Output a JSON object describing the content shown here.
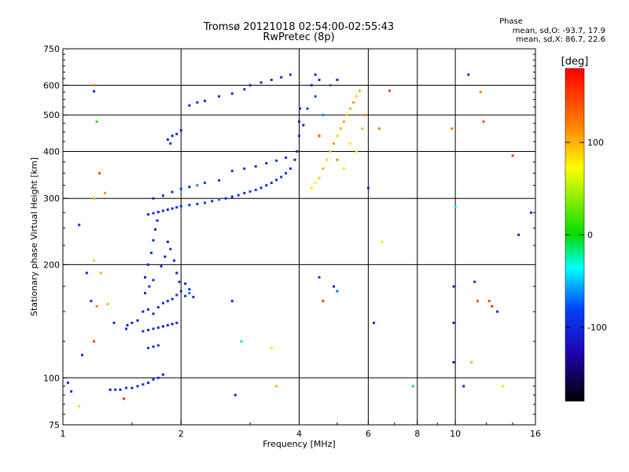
{
  "header": {
    "title_line1": "Tromsø 20121018 02:54:00-02:55:43",
    "title_line2": "RwPretec (8p)"
  },
  "phase_info": {
    "heading": "Phase",
    "line1": "mean, sd,O: -93.7, 17.9",
    "line2": "mean, sd,X:  86.7, 22.6"
  },
  "colorbar": {
    "label": "[deg]",
    "ticks": [
      {
        "value": 100,
        "text": "100"
      },
      {
        "value": 0,
        "text": "0"
      },
      {
        "value": -100,
        "text": "-100"
      }
    ],
    "range": [
      -180,
      180
    ]
  },
  "chart_data": {
    "type": "scatter",
    "title": "Tromsø 20121018 02:54:00-02:55:43",
    "subtitle": "RwPretec (8p)",
    "xlabel": "Frequency [MHz]",
    "ylabel": "Stationary phase Virtual Height [km]",
    "x_scale": "log",
    "y_scale": "log",
    "xlim": [
      1,
      16
    ],
    "ylim": [
      75,
      750
    ],
    "xticks": [
      {
        "value": 1,
        "label": "1"
      },
      {
        "value": 2,
        "label": "2"
      },
      {
        "value": 4,
        "label": "4"
      },
      {
        "value": 6,
        "label": "6"
      },
      {
        "value": 8,
        "label": "8"
      },
      {
        "value": 10,
        "label": "10"
      },
      {
        "value": 16,
        "label": "16"
      }
    ],
    "yticks": [
      {
        "value": 75,
        "label": "75"
      },
      {
        "value": 100,
        "label": "100"
      },
      {
        "value": 200,
        "label": "200"
      },
      {
        "value": 300,
        "label": "300"
      },
      {
        "value": 400,
        "label": "400"
      },
      {
        "value": 500,
        "label": "500"
      },
      {
        "value": 600,
        "label": "600"
      },
      {
        "value": 750,
        "label": "750"
      }
    ],
    "grid": true,
    "x_gridlines": [
      2,
      4,
      6,
      8,
      10
    ],
    "y_gridlines": [
      100,
      200,
      300,
      400,
      500,
      600
    ],
    "color_axis": "phase [deg], -180 to 180",
    "series": [
      {
        "points": [
          [
            1.32,
            93,
            -110
          ],
          [
            1.36,
            93,
            -100
          ],
          [
            1.4,
            93,
            -105
          ],
          [
            1.45,
            94,
            -95
          ],
          [
            1.5,
            94,
            -110
          ],
          [
            1.55,
            95,
            -100
          ],
          [
            1.6,
            96,
            -90
          ],
          [
            1.65,
            97,
            -105
          ],
          [
            1.7,
            99,
            -100
          ],
          [
            1.75,
            100,
            -95
          ],
          [
            1.8,
            102,
            -110
          ],
          [
            1.03,
            97,
            -100
          ],
          [
            1.05,
            92,
            -90
          ],
          [
            1.1,
            84,
            60
          ],
          [
            1.43,
            88,
            160
          ]
        ]
      },
      {
        "points": [
          [
            1.46,
            138,
            -110
          ],
          [
            1.5,
            140,
            -100
          ],
          [
            1.55,
            142,
            -105
          ],
          [
            1.6,
            150,
            -100
          ],
          [
            1.65,
            152,
            -95
          ],
          [
            1.7,
            148,
            -110
          ],
          [
            1.75,
            154,
            -100
          ],
          [
            1.8,
            158,
            -95
          ],
          [
            1.85,
            160,
            -105
          ],
          [
            1.9,
            162,
            -100
          ],
          [
            1.95,
            166,
            -90
          ],
          [
            2.0,
            170,
            -100
          ],
          [
            2.05,
            165,
            -95
          ],
          [
            2.1,
            168,
            -70
          ],
          [
            2.15,
            164,
            -100
          ],
          [
            1.6,
            133,
            -100
          ],
          [
            1.65,
            134,
            -105
          ],
          [
            1.7,
            135,
            -95
          ],
          [
            1.75,
            136,
            -100
          ],
          [
            1.8,
            137,
            -110
          ],
          [
            1.85,
            138,
            -100
          ],
          [
            1.9,
            139,
            -105
          ],
          [
            1.95,
            140,
            -100
          ],
          [
            1.65,
            120,
            -90
          ],
          [
            1.7,
            121,
            -100
          ],
          [
            1.75,
            122,
            -95
          ]
        ]
      },
      {
        "points": [
          [
            1.62,
            185,
            -110
          ],
          [
            1.65,
            200,
            -100
          ],
          [
            1.68,
            215,
            -95
          ],
          [
            1.7,
            232,
            -100
          ],
          [
            1.72,
            248,
            -105
          ],
          [
            1.74,
            262,
            -100
          ],
          [
            1.78,
            198,
            -95
          ],
          [
            1.82,
            210,
            -100
          ],
          [
            1.85,
            230,
            -110
          ],
          [
            1.88,
            220,
            -90
          ],
          [
            1.92,
            205,
            -100
          ],
          [
            1.95,
            190,
            -105
          ],
          [
            1.98,
            180,
            -100
          ],
          [
            2.05,
            178,
            -95
          ],
          [
            2.1,
            172,
            -100
          ],
          [
            1.62,
            168,
            -100
          ],
          [
            1.66,
            175,
            -95
          ],
          [
            1.7,
            182,
            -105
          ]
        ]
      },
      {
        "points": [
          [
            1.65,
            272,
            -100
          ],
          [
            1.7,
            274,
            -95
          ],
          [
            1.75,
            276,
            -105
          ],
          [
            1.8,
            278,
            -100
          ],
          [
            1.85,
            280,
            -110
          ],
          [
            1.9,
            282,
            -100
          ],
          [
            1.95,
            284,
            -90
          ],
          [
            2.0,
            286,
            -100
          ],
          [
            2.1,
            288,
            -95
          ],
          [
            2.2,
            290,
            -100
          ],
          [
            2.3,
            292,
            -80
          ],
          [
            2.4,
            295,
            -100
          ],
          [
            2.5,
            298,
            -70
          ],
          [
            2.6,
            300,
            -90
          ],
          [
            2.7,
            303,
            -100
          ],
          [
            2.8,
            306,
            -95
          ],
          [
            2.9,
            310,
            -100
          ],
          [
            3.0,
            313,
            -80
          ],
          [
            3.1,
            316,
            -100
          ],
          [
            3.2,
            320,
            -90
          ],
          [
            3.3,
            325,
            -100
          ],
          [
            3.4,
            330,
            -95
          ],
          [
            3.5,
            336,
            -100
          ],
          [
            3.6,
            342,
            -90
          ],
          [
            3.7,
            350,
            -100
          ],
          [
            3.8,
            360,
            -95
          ],
          [
            3.9,
            380,
            -100
          ],
          [
            3.95,
            400,
            -100
          ],
          [
            4.0,
            440,
            -95
          ],
          [
            4.0,
            480,
            -100
          ],
          [
            4.02,
            520,
            -110
          ]
        ]
      },
      {
        "points": [
          [
            1.7,
            300,
            -100
          ],
          [
            1.8,
            305,
            -90
          ],
          [
            1.9,
            312,
            -95
          ],
          [
            2.0,
            318,
            -80
          ],
          [
            2.1,
            322,
            -100
          ],
          [
            2.2,
            325,
            -60
          ],
          [
            2.3,
            330,
            -90
          ],
          [
            2.5,
            335,
            -100
          ],
          [
            2.7,
            355,
            -95
          ],
          [
            2.9,
            360,
            -100
          ],
          [
            3.1,
            365,
            -90
          ],
          [
            3.3,
            372,
            -100
          ],
          [
            3.5,
            378,
            -95
          ],
          [
            3.7,
            385,
            -100
          ]
        ]
      },
      {
        "points": [
          [
            1.85,
            430,
            -100
          ],
          [
            1.9,
            440,
            -105
          ],
          [
            1.95,
            445,
            -95
          ],
          [
            2.0,
            455,
            -100
          ],
          [
            1.88,
            420,
            -90
          ],
          [
            2.1,
            530,
            -100
          ],
          [
            2.2,
            540,
            -95
          ],
          [
            2.3,
            545,
            -100
          ],
          [
            2.5,
            560,
            -90
          ],
          [
            2.7,
            570,
            -100
          ],
          [
            2.9,
            585,
            -95
          ],
          [
            3.0,
            600,
            -100
          ],
          [
            3.2,
            610,
            -105
          ],
          [
            3.4,
            620,
            -100
          ],
          [
            3.6,
            630,
            -95
          ],
          [
            3.8,
            640,
            -100
          ]
        ]
      },
      {
        "points": [
          [
            4.3,
            320,
            80
          ],
          [
            4.4,
            330,
            70
          ],
          [
            4.5,
            340,
            90
          ],
          [
            4.6,
            360,
            100
          ],
          [
            4.7,
            380,
            85
          ],
          [
            4.8,
            400,
            95
          ],
          [
            4.9,
            420,
            110
          ],
          [
            5.0,
            440,
            90
          ],
          [
            5.1,
            460,
            100
          ],
          [
            5.2,
            480,
            105
          ],
          [
            5.3,
            500,
            95
          ],
          [
            5.4,
            520,
            100
          ],
          [
            5.5,
            540,
            110
          ],
          [
            5.6,
            560,
            90
          ],
          [
            5.7,
            580,
            100
          ],
          [
            5.0,
            380,
            120
          ],
          [
            5.2,
            360,
            60
          ],
          [
            5.4,
            420,
            80
          ],
          [
            5.6,
            400,
            70
          ],
          [
            5.8,
            460,
            100
          ],
          [
            5.9,
            500,
            120
          ],
          [
            4.5,
            440,
            140
          ],
          [
            4.6,
            500,
            -60
          ],
          [
            4.4,
            560,
            -80
          ],
          [
            4.3,
            600,
            -100
          ],
          [
            4.2,
            520,
            -90
          ],
          [
            4.1,
            470,
            -100
          ],
          [
            4.8,
            600,
            -70
          ],
          [
            5.0,
            620,
            -100
          ],
          [
            4.5,
            620,
            -90
          ],
          [
            4.4,
            640,
            -95
          ]
        ]
      },
      {
        "points": [
          [
            1.2,
            600,
            120
          ],
          [
            1.2,
            578,
            -100
          ],
          [
            1.22,
            480,
            10
          ],
          [
            1.24,
            350,
            150
          ],
          [
            1.28,
            310,
            110
          ],
          [
            1.2,
            300,
            100
          ],
          [
            1.1,
            255,
            -100
          ],
          [
            1.2,
            205,
            90
          ],
          [
            1.25,
            190,
            100
          ],
          [
            1.15,
            190,
            -100
          ],
          [
            1.18,
            160,
            -100
          ],
          [
            1.3,
            157,
            100
          ],
          [
            1.22,
            155,
            120
          ],
          [
            1.2,
            125,
            150
          ],
          [
            1.12,
            115,
            -100
          ],
          [
            1.35,
            140,
            -100
          ],
          [
            1.45,
            135,
            -100
          ],
          [
            2.7,
            160,
            -100
          ],
          [
            2.85,
            125,
            -20
          ],
          [
            2.75,
            90,
            -100
          ],
          [
            3.4,
            120,
            60
          ],
          [
            3.5,
            95,
            100
          ],
          [
            4.5,
            185,
            -90
          ],
          [
            4.6,
            160,
            150
          ],
          [
            4.9,
            175,
            -100
          ],
          [
            5.0,
            170,
            -70
          ],
          [
            6.2,
            140,
            -100
          ],
          [
            6.5,
            230,
            60
          ],
          [
            6.0,
            320,
            -100
          ],
          [
            6.8,
            580,
            150
          ],
          [
            6.4,
            460,
            120
          ],
          [
            7.8,
            95,
            -10
          ],
          [
            9.8,
            460,
            120
          ],
          [
            9.9,
            175,
            -100
          ],
          [
            9.9,
            140,
            -100
          ],
          [
            9.9,
            110,
            -100
          ],
          [
            10.0,
            285,
            -40
          ],
          [
            10.5,
            95,
            -100
          ],
          [
            10.8,
            640,
            -100
          ],
          [
            11.0,
            110,
            100
          ],
          [
            11.2,
            180,
            -100
          ],
          [
            11.4,
            160,
            140
          ],
          [
            11.6,
            575,
            120
          ],
          [
            11.8,
            480,
            140
          ],
          [
            12.2,
            160,
            150
          ],
          [
            12.4,
            155,
            160
          ],
          [
            12.8,
            150,
            -100
          ],
          [
            13.2,
            95,
            60
          ],
          [
            14.0,
            390,
            150
          ],
          [
            14.5,
            240,
            -100
          ],
          [
            15.6,
            275,
            -100
          ]
        ]
      }
    ]
  }
}
